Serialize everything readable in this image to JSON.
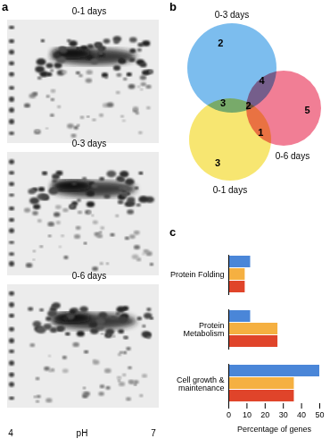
{
  "panel_labels": [
    "a",
    "b",
    "c"
  ],
  "gels": {
    "titles": [
      "0-1 days",
      "0-3 days",
      "0-6 days"
    ],
    "x_label": "pH",
    "xlim": [
      4,
      7
    ],
    "xticks": [
      4,
      7
    ]
  },
  "venn": {
    "sets": [
      {
        "name": "0-3 days",
        "color": "#4aa3e8"
      },
      {
        "name": "0-6 days",
        "color": "#ec4c6c"
      },
      {
        "name": "0-1 days",
        "color": "#f4dc3a"
      }
    ],
    "regions": [
      {
        "sets": [
          "0-3 days"
        ],
        "value": 2
      },
      {
        "sets": [
          "0-6 days"
        ],
        "value": 5
      },
      {
        "sets": [
          "0-1 days"
        ],
        "value": 3
      },
      {
        "sets": [
          "0-3 days",
          "0-6 days"
        ],
        "value": 4
      },
      {
        "sets": [
          "0-3 days",
          "0-1 days"
        ],
        "value": 3
      },
      {
        "sets": [
          "0-6 days",
          "0-1 days"
        ],
        "value": 1
      },
      {
        "sets": [
          "0-3 days",
          "0-6 days",
          "0-1 days"
        ],
        "value": 2
      }
    ]
  },
  "chart_data": {
    "type": "bar",
    "orientation": "horizontal",
    "categories": [
      "Protein Folding",
      "Protein Metabolism",
      "Cell growth & maintenance"
    ],
    "series": [
      {
        "color": "#4a86d8",
        "values": [
          12,
          12,
          50
        ]
      },
      {
        "color": "#f5b041",
        "values": [
          9,
          27,
          36
        ]
      },
      {
        "color": "#e0442a",
        "values": [
          9,
          27,
          36
        ]
      }
    ],
    "xlabel": "Percentage of genes",
    "xlim": [
      0,
      50
    ],
    "xticks": [
      0,
      10,
      20,
      30,
      40,
      50
    ],
    "grid": false
  }
}
